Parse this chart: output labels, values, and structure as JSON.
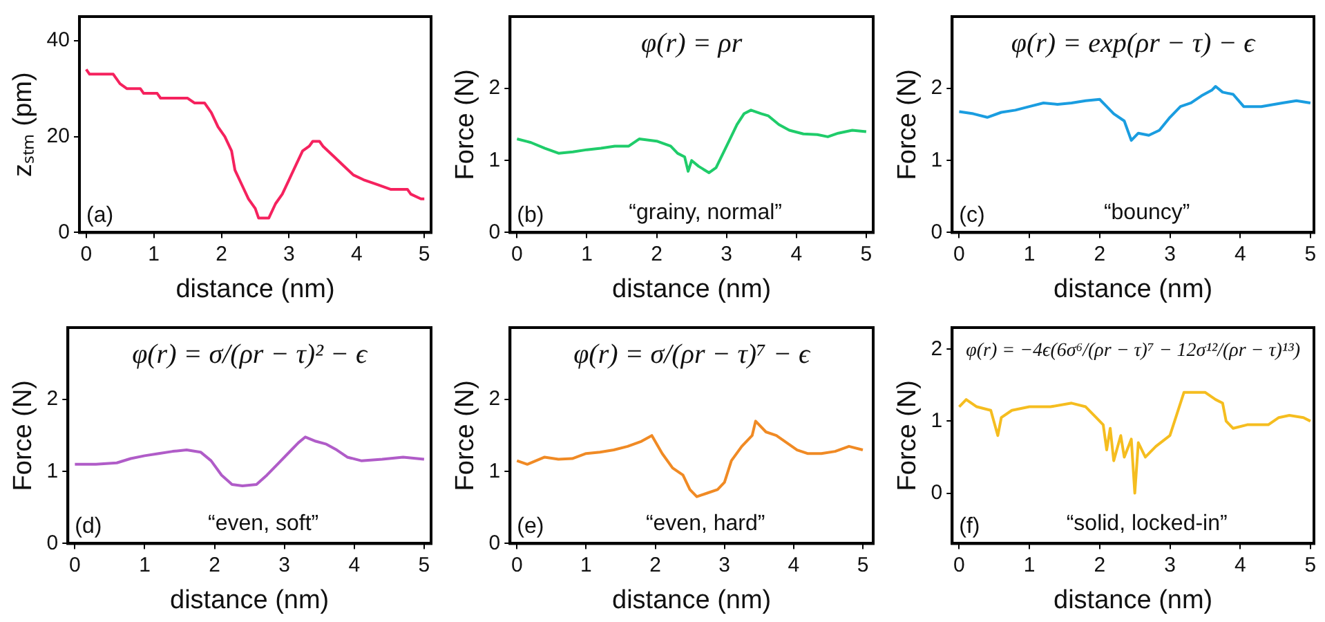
{
  "chart_data": [
    {
      "type": "line",
      "xlabel": "distance (nm)",
      "ylabel": "zₛₜₘ (pm)",
      "xlim": [
        -0.1,
        5.1
      ],
      "xticks": [
        0,
        1,
        2,
        3,
        4,
        5
      ],
      "ylim": [
        0,
        45
      ],
      "yticks": [
        0,
        20,
        40
      ],
      "grid": false,
      "legend": false,
      "marker": "none",
      "line_style": "solid",
      "annotations": [
        "(a)"
      ],
      "x": [
        0,
        0.05,
        0.4,
        0.5,
        0.6,
        0.8,
        0.85,
        1.05,
        1.1,
        1.5,
        1.6,
        1.75,
        1.85,
        1.95,
        2.05,
        2.15,
        2.2,
        2.3,
        2.4,
        2.5,
        2.55,
        2.7,
        2.8,
        2.9,
        3.0,
        3.1,
        3.2,
        3.3,
        3.35,
        3.45,
        3.5,
        3.65,
        3.8,
        3.95,
        4.1,
        4.3,
        4.5,
        4.75,
        4.8,
        4.95,
        5.0
      ],
      "series": [
        {
          "color": "#f5225e",
          "values": [
            34,
            33,
            33,
            31,
            30,
            30,
            29,
            29,
            28,
            28,
            27,
            27,
            25,
            22,
            20,
            17,
            13,
            10,
            7,
            5,
            3,
            3,
            6,
            8,
            11,
            14,
            17,
            18,
            19,
            19,
            18,
            16,
            14,
            12,
            11,
            10,
            9,
            9,
            8,
            7,
            7
          ]
        }
      ]
    },
    {
      "type": "line",
      "xlabel": "distance (nm)",
      "ylabel": "Force (N)",
      "xlim": [
        -0.1,
        5.1
      ],
      "xticks": [
        0,
        1,
        2,
        3,
        4,
        5
      ],
      "ylim": [
        0,
        3
      ],
      "yticks": [
        0,
        1,
        2
      ],
      "grid": false,
      "legend": false,
      "marker": "none",
      "line_style": "solid",
      "annotations": [
        "(b)",
        "“grainy, normal”",
        "φ(r) = ρr"
      ],
      "x": [
        0,
        0.2,
        0.4,
        0.6,
        0.8,
        1.0,
        1.2,
        1.4,
        1.6,
        1.75,
        2.0,
        2.2,
        2.3,
        2.4,
        2.45,
        2.5,
        2.6,
        2.75,
        2.85,
        2.95,
        3.05,
        3.15,
        3.25,
        3.35,
        3.5,
        3.6,
        3.75,
        3.9,
        4.1,
        4.3,
        4.45,
        4.6,
        4.8,
        5.0
      ],
      "series": [
        {
          "color": "#1fcc6a",
          "values": [
            1.3,
            1.25,
            1.17,
            1.1,
            1.12,
            1.15,
            1.17,
            1.2,
            1.2,
            1.3,
            1.27,
            1.2,
            1.1,
            1.05,
            0.85,
            1.0,
            0.92,
            0.83,
            0.9,
            1.1,
            1.3,
            1.5,
            1.65,
            1.7,
            1.65,
            1.62,
            1.5,
            1.42,
            1.37,
            1.36,
            1.33,
            1.38,
            1.42,
            1.4
          ]
        }
      ]
    },
    {
      "type": "line",
      "xlabel": "distance (nm)",
      "ylabel": "Force (N)",
      "xlim": [
        -0.1,
        5.05
      ],
      "xticks": [
        0,
        1,
        2,
        3,
        4,
        5
      ],
      "ylim": [
        0,
        3
      ],
      "yticks": [
        0,
        1,
        2
      ],
      "grid": false,
      "legend": false,
      "marker": "none",
      "line_style": "solid",
      "annotations": [
        "(c)",
        "“bouncy”",
        "φ(r) = exp(ρr − τ) − ϵ"
      ],
      "x": [
        0,
        0.2,
        0.4,
        0.6,
        0.8,
        1.0,
        1.2,
        1.4,
        1.6,
        1.8,
        2.0,
        2.1,
        2.2,
        2.35,
        2.45,
        2.55,
        2.7,
        2.85,
        3.0,
        3.15,
        3.3,
        3.45,
        3.6,
        3.65,
        3.75,
        3.9,
        4.05,
        4.3,
        4.6,
        4.8,
        5.0
      ],
      "series": [
        {
          "color": "#1a9de0",
          "values": [
            1.68,
            1.65,
            1.6,
            1.67,
            1.7,
            1.75,
            1.8,
            1.78,
            1.8,
            1.83,
            1.85,
            1.75,
            1.65,
            1.55,
            1.28,
            1.38,
            1.35,
            1.42,
            1.6,
            1.75,
            1.8,
            1.9,
            1.98,
            2.03,
            1.95,
            1.92,
            1.75,
            1.75,
            1.8,
            1.83,
            1.8
          ]
        }
      ]
    },
    {
      "type": "line",
      "xlabel": "distance (nm)",
      "ylabel": "Force (N)",
      "xlim": [
        -0.1,
        5.1
      ],
      "xticks": [
        0,
        1,
        2,
        3,
        4,
        5
      ],
      "ylim": [
        0,
        3
      ],
      "yticks": [
        0,
        1,
        2
      ],
      "grid": false,
      "legend": false,
      "marker": "none",
      "line_style": "solid",
      "annotations": [
        "(d)",
        "“even, soft”",
        "φ(r) = σ/(ρr − τ)² − ϵ"
      ],
      "x": [
        0,
        0.3,
        0.6,
        0.8,
        1.0,
        1.2,
        1.4,
        1.6,
        1.8,
        1.95,
        2.1,
        2.25,
        2.4,
        2.6,
        2.75,
        2.9,
        3.05,
        3.2,
        3.3,
        3.45,
        3.6,
        3.75,
        3.9,
        4.1,
        4.4,
        4.7,
        5.0
      ],
      "series": [
        {
          "color": "#b05cc8",
          "values": [
            1.1,
            1.1,
            1.12,
            1.18,
            1.22,
            1.25,
            1.28,
            1.3,
            1.27,
            1.15,
            0.95,
            0.82,
            0.8,
            0.82,
            0.95,
            1.1,
            1.25,
            1.4,
            1.48,
            1.42,
            1.38,
            1.3,
            1.2,
            1.15,
            1.17,
            1.2,
            1.17
          ]
        }
      ]
    },
    {
      "type": "line",
      "xlabel": "distance (nm)",
      "ylabel": "Force (N)",
      "xlim": [
        -0.1,
        5.15
      ],
      "xticks": [
        0,
        1,
        2,
        3,
        4,
        5
      ],
      "ylim": [
        0,
        3
      ],
      "yticks": [
        0,
        1,
        2
      ],
      "grid": false,
      "legend": false,
      "marker": "none",
      "line_style": "solid",
      "annotations": [
        "(e)",
        "“even, hard”",
        "φ(r) = σ/(ρr − τ)⁷ − ϵ"
      ],
      "x": [
        0,
        0.15,
        0.4,
        0.6,
        0.8,
        1.0,
        1.2,
        1.4,
        1.6,
        1.8,
        1.95,
        2.1,
        2.25,
        2.4,
        2.5,
        2.6,
        2.75,
        2.9,
        3.0,
        3.1,
        3.25,
        3.4,
        3.45,
        3.6,
        3.75,
        3.9,
        4.05,
        4.2,
        4.4,
        4.6,
        4.8,
        5.0
      ],
      "series": [
        {
          "color": "#f08a24",
          "values": [
            1.15,
            1.1,
            1.2,
            1.17,
            1.18,
            1.25,
            1.27,
            1.3,
            1.35,
            1.42,
            1.5,
            1.25,
            1.05,
            0.95,
            0.75,
            0.65,
            0.7,
            0.75,
            0.85,
            1.15,
            1.35,
            1.5,
            1.7,
            1.55,
            1.5,
            1.4,
            1.3,
            1.25,
            1.25,
            1.28,
            1.35,
            1.3
          ]
        }
      ]
    },
    {
      "type": "line",
      "xlabel": "distance (nm)",
      "ylabel": "Force (N)",
      "xlim": [
        -0.1,
        5.05
      ],
      "xticks": [
        0,
        1,
        2,
        3,
        4,
        5
      ],
      "ylim": [
        -0.7,
        2.3
      ],
      "yticks": [
        0,
        1,
        2
      ],
      "grid": false,
      "legend": false,
      "marker": "none",
      "line_style": "solid",
      "annotations": [
        "(f)",
        "“solid, locked-in”",
        "φ(r) = −4ϵ(6σ⁶/(ρr − τ)⁷ − 12σ¹²/(ρr − τ)¹³)"
      ],
      "x": [
        0,
        0.1,
        0.25,
        0.45,
        0.55,
        0.6,
        0.75,
        1.0,
        1.3,
        1.6,
        1.8,
        1.95,
        2.05,
        2.1,
        2.15,
        2.2,
        2.3,
        2.35,
        2.45,
        2.5,
        2.55,
        2.65,
        2.8,
        3.0,
        3.1,
        3.2,
        3.3,
        3.5,
        3.65,
        3.75,
        3.8,
        3.9,
        4.1,
        4.4,
        4.55,
        4.7,
        4.9,
        5.0
      ],
      "series": [
        {
          "color": "#f5bd1f",
          "values": [
            1.2,
            1.3,
            1.2,
            1.15,
            0.8,
            1.05,
            1.15,
            1.2,
            1.2,
            1.25,
            1.2,
            1.05,
            0.95,
            0.6,
            0.9,
            0.45,
            0.8,
            0.5,
            0.75,
            0.0,
            0.7,
            0.5,
            0.65,
            0.8,
            1.1,
            1.4,
            1.4,
            1.4,
            1.3,
            1.25,
            1.0,
            0.9,
            0.95,
            0.95,
            1.05,
            1.08,
            1.05,
            1.0
          ]
        }
      ]
    }
  ]
}
